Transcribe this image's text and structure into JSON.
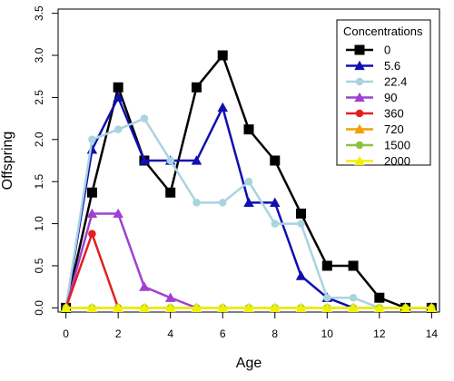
{
  "chart_data": {
    "type": "line",
    "title": "",
    "xlabel": "Age",
    "ylabel": "Offspring",
    "xlim": [
      -0.3,
      14.3
    ],
    "ylim": [
      -0.05,
      3.55
    ],
    "x_ticks": [
      "0",
      "2",
      "4",
      "6",
      "8",
      "10",
      "12",
      "14"
    ],
    "y_ticks": [
      "0.0",
      "0.5",
      "1.0",
      "1.5",
      "2.0",
      "2.5",
      "3.0",
      "3.5"
    ],
    "grid": false,
    "legend": {
      "title": "Concentrations",
      "placement": "top-right"
    },
    "series": [
      {
        "name": "0",
        "color": "#000000",
        "marker": "square",
        "x": [
          0,
          1,
          2,
          3,
          4,
          5,
          6,
          7,
          8,
          9,
          10,
          11,
          12,
          13,
          14
        ],
        "values": [
          0,
          1.37,
          2.62,
          1.75,
          1.37,
          2.62,
          3.0,
          2.12,
          1.75,
          1.12,
          0.5,
          0.5,
          0.12,
          0,
          0
        ]
      },
      {
        "name": "5.6",
        "color": "#1010b0",
        "marker": "triangle",
        "x": [
          0,
          1,
          2,
          3,
          4,
          5,
          6,
          7,
          8,
          9,
          10,
          11
        ],
        "values": [
          0,
          1.88,
          2.5,
          1.75,
          1.75,
          1.75,
          2.38,
          1.25,
          1.25,
          0.38,
          0.12,
          0
        ]
      },
      {
        "name": "22.4",
        "color": "#a8d4e0",
        "marker": "circle",
        "x": [
          0,
          1,
          2,
          3,
          4,
          5,
          6,
          7,
          8,
          9,
          10,
          11,
          12
        ],
        "values": [
          0,
          2.0,
          2.12,
          2.25,
          1.75,
          1.25,
          1.25,
          1.5,
          1.0,
          1.0,
          0.12,
          0.12,
          0
        ]
      },
      {
        "name": "90",
        "color": "#a040d0",
        "marker": "triangle",
        "x": [
          0,
          1,
          2,
          3,
          4,
          5
        ],
        "values": [
          0,
          1.12,
          1.12,
          0.25,
          0.12,
          0
        ]
      },
      {
        "name": "360",
        "color": "#e02020",
        "marker": "circle",
        "x": [
          0,
          1,
          2
        ],
        "values": [
          0,
          0.88,
          0
        ]
      },
      {
        "name": "720",
        "color": "#f0a000",
        "marker": "triangle",
        "x": [
          0,
          1,
          2,
          3,
          4,
          5,
          6,
          7,
          8,
          9,
          10,
          11,
          12,
          13,
          14
        ],
        "values": [
          0,
          0,
          0,
          0,
          0,
          0,
          0,
          0,
          0,
          0,
          0,
          0,
          0,
          0,
          0
        ]
      },
      {
        "name": "1500",
        "color": "#90c040",
        "marker": "circle",
        "x": [
          0,
          1,
          2,
          3,
          4,
          5,
          6,
          7,
          8,
          9,
          10,
          11,
          12,
          13,
          14
        ],
        "values": [
          0,
          0,
          0,
          0,
          0,
          0,
          0,
          0,
          0,
          0,
          0,
          0,
          0,
          0,
          0
        ]
      },
      {
        "name": "2000",
        "color": "#f0f000",
        "marker": "triangle",
        "x": [
          0,
          1,
          2,
          3,
          4,
          5,
          6,
          7,
          8,
          9,
          10,
          11,
          12,
          13,
          14
        ],
        "values": [
          0,
          0,
          0,
          0,
          0,
          0,
          0,
          0,
          0,
          0,
          0,
          0,
          0,
          0,
          0
        ]
      }
    ]
  }
}
